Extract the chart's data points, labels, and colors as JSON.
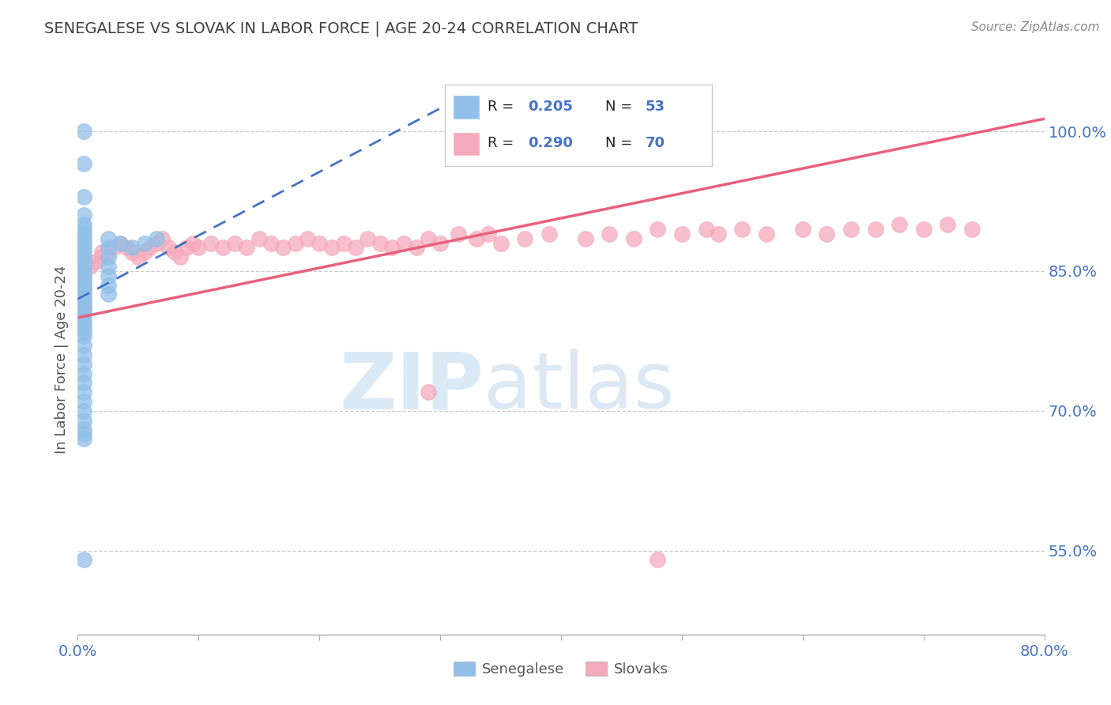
{
  "title": "SENEGALESE VS SLOVAK IN LABOR FORCE | AGE 20-24 CORRELATION CHART",
  "ylabel": "In Labor Force | Age 20-24",
  "source_text": "Source: ZipAtlas.com",
  "watermark_zip": "ZIP",
  "watermark_atlas": "atlas",
  "x_min": 0.0,
  "x_max": 0.8,
  "y_min": 0.46,
  "y_max": 1.05,
  "y_ticks": [
    0.55,
    0.7,
    0.85,
    1.0
  ],
  "y_tick_labels": [
    "55.0%",
    "70.0%",
    "85.0%",
    "100.0%"
  ],
  "x_tick_left_label": "0.0%",
  "x_tick_right_label": "80.0%",
  "label1": "Senegalese",
  "label2": "Slovaks",
  "color1": "#92C0E8",
  "color2": "#F5AABB",
  "trendline_color1": "#4472C4",
  "trendline_color2": "#E8607A",
  "background_color": "#FFFFFF",
  "grid_color": "#CCCCCC",
  "title_color": "#404040",
  "tick_color": "#4472C4",
  "senegalese_x": [
    0.005,
    0.005,
    0.005,
    0.005,
    0.005,
    0.005,
    0.005,
    0.005,
    0.005,
    0.005,
    0.005,
    0.005,
    0.005,
    0.005,
    0.005,
    0.005,
    0.005,
    0.005,
    0.005,
    0.005,
    0.005,
    0.005,
    0.005,
    0.005,
    0.005,
    0.005,
    0.005,
    0.005,
    0.005,
    0.005,
    0.005,
    0.005,
    0.005,
    0.005,
    0.005,
    0.005,
    0.005,
    0.005,
    0.005,
    0.005,
    0.025,
    0.025,
    0.025,
    0.025,
    0.025,
    0.025,
    0.025,
    0.035,
    0.045,
    0.055,
    0.065,
    0.005,
    0.005
  ],
  "senegalese_y": [
    1.0,
    0.965,
    0.93,
    0.91,
    0.9,
    0.895,
    0.89,
    0.885,
    0.88,
    0.875,
    0.87,
    0.865,
    0.86,
    0.855,
    0.85,
    0.845,
    0.84,
    0.835,
    0.83,
    0.825,
    0.82,
    0.815,
    0.81,
    0.805,
    0.8,
    0.795,
    0.79,
    0.785,
    0.78,
    0.77,
    0.76,
    0.75,
    0.74,
    0.73,
    0.72,
    0.71,
    0.7,
    0.69,
    0.68,
    0.67,
    0.885,
    0.875,
    0.865,
    0.855,
    0.845,
    0.835,
    0.825,
    0.88,
    0.875,
    0.88,
    0.885,
    0.675,
    0.54
  ],
  "slovak_x": [
    0.005,
    0.005,
    0.005,
    0.005,
    0.005,
    0.01,
    0.015,
    0.02,
    0.02,
    0.025,
    0.03,
    0.035,
    0.04,
    0.045,
    0.05,
    0.055,
    0.06,
    0.065,
    0.07,
    0.075,
    0.08,
    0.085,
    0.09,
    0.095,
    0.1,
    0.11,
    0.12,
    0.13,
    0.14,
    0.15,
    0.16,
    0.17,
    0.18,
    0.19,
    0.2,
    0.21,
    0.22,
    0.23,
    0.24,
    0.25,
    0.26,
    0.27,
    0.28,
    0.29,
    0.3,
    0.315,
    0.33,
    0.34,
    0.35,
    0.37,
    0.39,
    0.42,
    0.44,
    0.46,
    0.48,
    0.5,
    0.52,
    0.53,
    0.55,
    0.57,
    0.6,
    0.62,
    0.64,
    0.66,
    0.68,
    0.7,
    0.72,
    0.74,
    0.29,
    0.48
  ],
  "slovak_y": [
    0.85,
    0.84,
    0.83,
    0.82,
    0.81,
    0.855,
    0.86,
    0.865,
    0.87,
    0.87,
    0.875,
    0.88,
    0.875,
    0.87,
    0.865,
    0.87,
    0.875,
    0.88,
    0.885,
    0.875,
    0.87,
    0.865,
    0.875,
    0.88,
    0.875,
    0.88,
    0.875,
    0.88,
    0.875,
    0.885,
    0.88,
    0.875,
    0.88,
    0.885,
    0.88,
    0.875,
    0.88,
    0.875,
    0.885,
    0.88,
    0.875,
    0.88,
    0.875,
    0.885,
    0.88,
    0.89,
    0.885,
    0.89,
    0.88,
    0.885,
    0.89,
    0.885,
    0.89,
    0.885,
    0.895,
    0.89,
    0.895,
    0.89,
    0.895,
    0.89,
    0.895,
    0.89,
    0.895,
    0.895,
    0.9,
    0.895,
    0.9,
    0.895,
    0.72,
    0.54
  ]
}
